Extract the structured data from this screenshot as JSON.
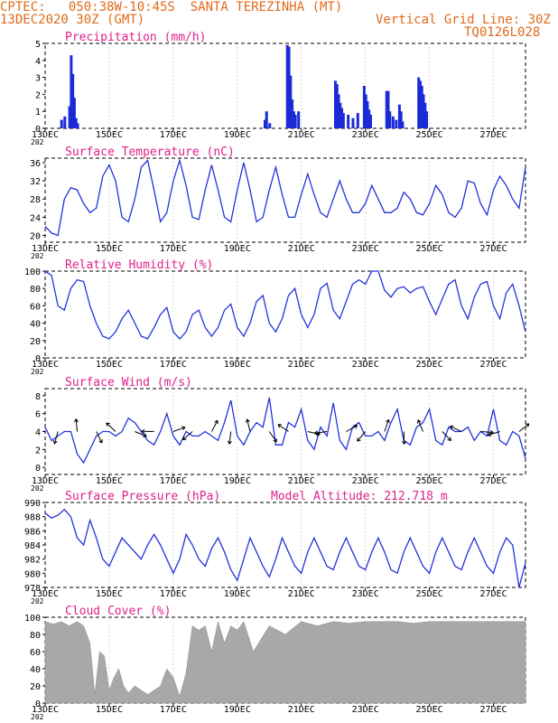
{
  "header": {
    "line1_left": "CPTEC:   050:38W-10:45S  SANTA TEREZINHA (MT)",
    "line2_left": "13DEC2020 30Z (GMT)",
    "line2_right": "Vertical Grid Line: 30Z",
    "line3_right": "TQ0126L028"
  },
  "x_tick_labels": [
    "13DEC",
    "15DEC",
    "17DEC",
    "19DEC",
    "21DEC",
    "23DEC",
    "25DEC",
    "27DEC"
  ],
  "x_year_label": "202",
  "colors": {
    "header": "#e06a1a",
    "title": "#e0208a",
    "line": "#2233dd",
    "bar": "#1a2bd6",
    "cloud": "#a8a8a8",
    "grid": "#999999"
  },
  "chart_data": [
    {
      "id": "precip",
      "type": "bar",
      "title": "Precipitation (mm/h)",
      "ylim": [
        0,
        5
      ],
      "yticks": [
        0,
        1,
        2,
        3,
        4,
        5
      ],
      "x_unit": "days since 13DEC",
      "bars": [
        [
          0.5,
          0.5
        ],
        [
          0.6,
          0.7
        ],
        [
          0.75,
          1.3
        ],
        [
          0.8,
          4.3
        ],
        [
          0.85,
          3.2
        ],
        [
          0.9,
          1.8
        ],
        [
          0.95,
          0.6
        ],
        [
          1.0,
          0.3
        ],
        [
          6.85,
          0.5
        ],
        [
          6.9,
          1.0
        ],
        [
          7.0,
          0.3
        ],
        [
          7.55,
          4.9
        ],
        [
          7.6,
          4.8
        ],
        [
          7.65,
          3.1
        ],
        [
          7.7,
          1.7
        ],
        [
          7.75,
          1.0
        ],
        [
          7.8,
          0.8
        ],
        [
          7.9,
          1.0
        ],
        [
          9.05,
          2.8
        ],
        [
          9.1,
          2.6
        ],
        [
          9.15,
          2.0
        ],
        [
          9.2,
          1.5
        ],
        [
          9.25,
          1.2
        ],
        [
          9.3,
          0.9
        ],
        [
          9.45,
          0.8
        ],
        [
          9.6,
          0.6
        ],
        [
          9.75,
          0.9
        ],
        [
          9.95,
          2.5
        ],
        [
          10.0,
          2.0
        ],
        [
          10.05,
          1.6
        ],
        [
          10.1,
          1.1
        ],
        [
          10.15,
          0.8
        ],
        [
          10.65,
          2.2
        ],
        [
          10.7,
          2.2
        ],
        [
          10.75,
          1.0
        ],
        [
          10.85,
          0.7
        ],
        [
          10.95,
          0.5
        ],
        [
          11.05,
          1.4
        ],
        [
          11.1,
          1.0
        ],
        [
          11.15,
          0.4
        ],
        [
          11.65,
          3.0
        ],
        [
          11.7,
          2.8
        ],
        [
          11.75,
          2.5
        ],
        [
          11.8,
          2.0
        ],
        [
          11.85,
          1.5
        ],
        [
          11.9,
          1.0
        ]
      ]
    },
    {
      "id": "temp",
      "type": "line",
      "title": "Surface Temperature (nC)",
      "ylim": [
        18.5,
        37
      ],
      "yticks": [
        20,
        24,
        28,
        32,
        36
      ],
      "x": [
        0,
        0.2,
        0.4,
        0.6,
        0.8,
        1.0,
        1.2,
        1.4,
        1.6,
        1.8,
        2.0,
        2.2,
        2.4,
        2.6,
        2.8,
        3.0,
        3.2,
        3.4,
        3.6,
        3.8,
        4.0,
        4.2,
        4.4,
        4.6,
        4.8,
        5.0,
        5.2,
        5.4,
        5.6,
        5.8,
        6.0,
        6.2,
        6.4,
        6.6,
        6.8,
        7.0,
        7.2,
        7.4,
        7.6,
        7.8,
        8.0,
        8.2,
        8.4,
        8.6,
        8.8,
        9.0,
        9.2,
        9.4,
        9.6,
        9.8,
        10.0,
        10.2,
        10.4,
        10.6,
        10.8,
        11.0,
        11.2,
        11.4,
        11.6,
        11.8,
        12.0,
        12.2,
        12.4,
        12.6,
        12.8,
        13.0,
        13.2,
        13.4,
        13.6,
        13.8,
        14.0,
        14.2,
        14.4,
        14.6,
        14.8,
        15.0
      ],
      "y": [
        22,
        20.5,
        20,
        28,
        30.5,
        30,
        27,
        25,
        26,
        33,
        35.5,
        32,
        24,
        23,
        28,
        35,
        36.5,
        30,
        23,
        25,
        32,
        36.5,
        31,
        24,
        23.5,
        30,
        35.5,
        30,
        24,
        23,
        30,
        36,
        30,
        23,
        24,
        30,
        35,
        29,
        24,
        24,
        29,
        33.5,
        29,
        25,
        24,
        28,
        32,
        28,
        25,
        25,
        27,
        31,
        28,
        25,
        25,
        26,
        29.5,
        28,
        25,
        24.5,
        27,
        31,
        29,
        25,
        24,
        26,
        32,
        31.5,
        27,
        24.5,
        30,
        33,
        31,
        28,
        26,
        35
      ]
    },
    {
      "id": "rh",
      "type": "line",
      "title": "Relative Humidity (%)",
      "ylim": [
        0,
        100
      ],
      "yticks": [
        0,
        20,
        40,
        60,
        80,
        100
      ],
      "x": [
        0,
        0.2,
        0.4,
        0.6,
        0.8,
        1.0,
        1.2,
        1.4,
        1.6,
        1.8,
        2.0,
        2.2,
        2.4,
        2.6,
        2.8,
        3.0,
        3.2,
        3.4,
        3.6,
        3.8,
        4.0,
        4.2,
        4.4,
        4.6,
        4.8,
        5.0,
        5.2,
        5.4,
        5.6,
        5.8,
        6.0,
        6.2,
        6.4,
        6.6,
        6.8,
        7.0,
        7.2,
        7.4,
        7.6,
        7.8,
        8.0,
        8.2,
        8.4,
        8.6,
        8.8,
        9.0,
        9.2,
        9.4,
        9.6,
        9.8,
        10.0,
        10.2,
        10.4,
        10.6,
        10.8,
        11.0,
        11.2,
        11.4,
        11.6,
        11.8,
        12.0,
        12.2,
        12.4,
        12.6,
        12.8,
        13.0,
        13.2,
        13.4,
        13.6,
        13.8,
        14.0,
        14.2,
        14.4,
        14.6,
        14.8,
        15.0
      ],
      "y": [
        100,
        95,
        60,
        55,
        80,
        90,
        88,
        60,
        40,
        25,
        22,
        30,
        45,
        55,
        40,
        25,
        22,
        35,
        50,
        58,
        30,
        22,
        30,
        50,
        55,
        35,
        25,
        35,
        55,
        62,
        35,
        25,
        40,
        65,
        72,
        40,
        30,
        45,
        72,
        80,
        50,
        35,
        50,
        80,
        86,
        55,
        45,
        65,
        85,
        90,
        85,
        100,
        100,
        78,
        70,
        80,
        82,
        75,
        80,
        82,
        65,
        50,
        68,
        85,
        90,
        60,
        45,
        70,
        85,
        88,
        60,
        45,
        75,
        85,
        60,
        30
      ]
    },
    {
      "id": "wind",
      "type": "line",
      "title": "Surface Wind (m/s)",
      "ylim": [
        -0.8,
        8.8
      ],
      "yticks": [
        0,
        2,
        4,
        6,
        8
      ],
      "x": [
        0,
        0.2,
        0.4,
        0.6,
        0.8,
        1.0,
        1.2,
        1.4,
        1.6,
        1.8,
        2.0,
        2.2,
        2.4,
        2.6,
        2.8,
        3.0,
        3.2,
        3.4,
        3.6,
        3.8,
        4.0,
        4.2,
        4.4,
        4.6,
        4.8,
        5.0,
        5.2,
        5.4,
        5.6,
        5.8,
        6.0,
        6.2,
        6.4,
        6.6,
        6.8,
        7.0,
        7.2,
        7.4,
        7.6,
        7.8,
        8.0,
        8.2,
        8.4,
        8.6,
        8.8,
        9.0,
        9.2,
        9.4,
        9.6,
        9.8,
        10.0,
        10.2,
        10.4,
        10.6,
        10.8,
        11.0,
        11.2,
        11.4,
        11.6,
        11.8,
        12.0,
        12.2,
        12.4,
        12.6,
        12.8,
        13.0,
        13.2,
        13.4,
        13.6,
        13.8,
        14.0,
        14.2,
        14.4,
        14.6,
        14.8,
        15.0
      ],
      "y": [
        4.5,
        3,
        3.5,
        4,
        4,
        1.5,
        0.5,
        2,
        3.5,
        4,
        4,
        3.5,
        4,
        5.5,
        5,
        4,
        3,
        2.5,
        4,
        6,
        3.5,
        2.5,
        4,
        3.5,
        3.5,
        4,
        3.5,
        3,
        5,
        7.5,
        3.5,
        2.5,
        4,
        5,
        4.5,
        7.8,
        2.5,
        2.5,
        5,
        4.5,
        6.5,
        3,
        2,
        4.5,
        3.5,
        7.2,
        3,
        2,
        4.5,
        5,
        3.5,
        3.5,
        4,
        3,
        5,
        6.5,
        3,
        2.5,
        4.5,
        5,
        6.5,
        3,
        2.5,
        4.5,
        4,
        4,
        4.5,
        3,
        4,
        3.5,
        6.5,
        3,
        2.5,
        4,
        3.5,
        1
      ]
    },
    {
      "id": "pressure",
      "type": "line",
      "title": "Surface Pressure (hPa)",
      "subtitle": "Model Altitude: 212.718  m",
      "ylim": [
        978,
        990
      ],
      "yticks": [
        978,
        980,
        982,
        984,
        986,
        988,
        990
      ],
      "x": [
        0,
        0.2,
        0.4,
        0.6,
        0.8,
        1.0,
        1.2,
        1.4,
        1.6,
        1.8,
        2.0,
        2.2,
        2.4,
        2.6,
        2.8,
        3.0,
        3.2,
        3.4,
        3.6,
        3.8,
        4.0,
        4.2,
        4.4,
        4.6,
        4.8,
        5.0,
        5.2,
        5.4,
        5.6,
        5.8,
        6.0,
        6.2,
        6.4,
        6.6,
        6.8,
        7.0,
        7.2,
        7.4,
        7.6,
        7.8,
        8.0,
        8.2,
        8.4,
        8.6,
        8.8,
        9.0,
        9.2,
        9.4,
        9.6,
        9.8,
        10.0,
        10.2,
        10.4,
        10.6,
        10.8,
        11.0,
        11.2,
        11.4,
        11.6,
        11.8,
        12.0,
        12.2,
        12.4,
        12.6,
        12.8,
        13.0,
        13.2,
        13.4,
        13.6,
        13.8,
        14.0,
        14.2,
        14.4,
        14.6,
        14.8,
        15.0
      ],
      "y": [
        988.5,
        987.8,
        988.2,
        989,
        988,
        985,
        984,
        987.5,
        985,
        982,
        981,
        983,
        985,
        984,
        983,
        982,
        984,
        985.5,
        984,
        982,
        980,
        982,
        985.5,
        984,
        982,
        981,
        983.5,
        985,
        983,
        980.5,
        979,
        982,
        985,
        983,
        981,
        979.5,
        982,
        985,
        983,
        981,
        980,
        983,
        985,
        983,
        981,
        980.5,
        983,
        985,
        983,
        981,
        980.5,
        983,
        985,
        983,
        980.5,
        980,
        983,
        985,
        983,
        981,
        980,
        983,
        985,
        983,
        981,
        980.5,
        983,
        985,
        983,
        981,
        980,
        983,
        985,
        984,
        978,
        981.5
      ]
    },
    {
      "id": "cloud",
      "type": "area",
      "title": "Cloud Cover (%)",
      "ylim": [
        0,
        100
      ],
      "yticks": [
        0,
        20,
        40,
        60,
        80,
        100
      ],
      "x": [
        0,
        0.25,
        0.5,
        0.75,
        1.0,
        1.2,
        1.4,
        1.55,
        1.7,
        1.85,
        2.0,
        2.15,
        2.3,
        2.45,
        2.6,
        2.8,
        3.0,
        3.2,
        3.4,
        3.6,
        3.8,
        4.0,
        4.2,
        4.4,
        4.6,
        4.8,
        5.0,
        5.2,
        5.4,
        5.6,
        5.8,
        6.0,
        6.2,
        6.5,
        7.0,
        7.5,
        8.0,
        8.5,
        9.0,
        9.5,
        10.0,
        10.5,
        11.0,
        11.5,
        12.0,
        12.5,
        13.0,
        13.5,
        14.0,
        14.5,
        15.0
      ],
      "y": [
        95,
        92,
        95,
        90,
        95,
        90,
        70,
        10,
        60,
        55,
        15,
        30,
        40,
        20,
        12,
        20,
        15,
        10,
        15,
        20,
        40,
        30,
        8,
        35,
        90,
        85,
        90,
        60,
        95,
        70,
        90,
        85,
        95,
        60,
        90,
        80,
        95,
        90,
        95,
        93,
        95,
        95,
        95,
        93,
        95,
        95,
        95,
        95,
        95,
        95,
        95
      ]
    }
  ]
}
